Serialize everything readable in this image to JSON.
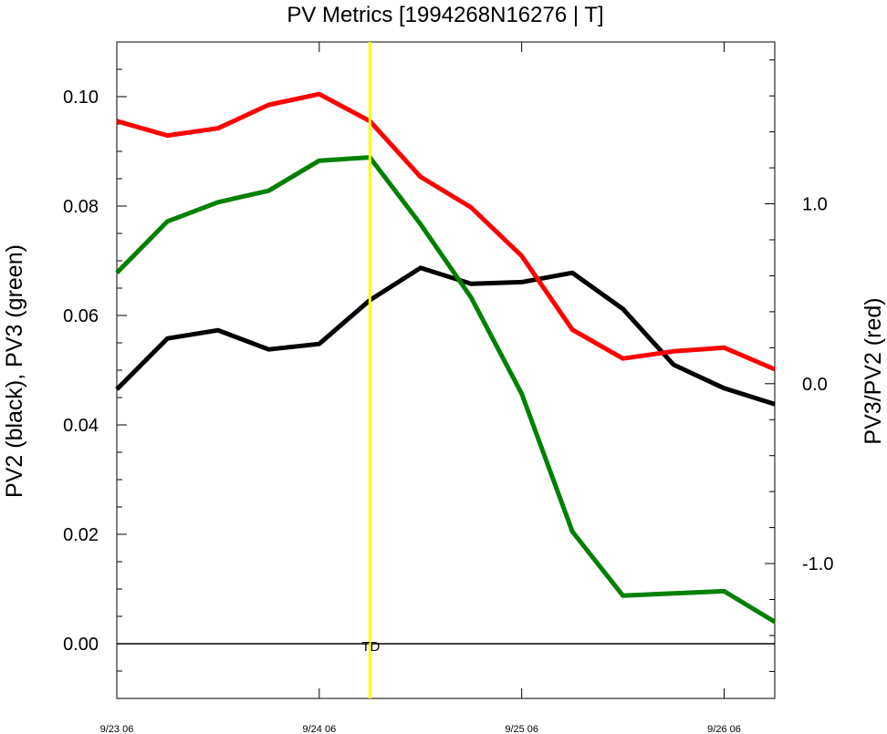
{
  "chart_data": {
    "type": "line",
    "title": "PV Metrics [1994268N16276 | T]",
    "ylabel_left": "PV2 (black), PV3 (green)",
    "ylabel_right": "PV3/PV2 (red)",
    "x_ticks": [
      {
        "x": 0,
        "label": "9/23 06"
      },
      {
        "x": 4,
        "label": "9/24 06"
      },
      {
        "x": 8,
        "label": "9/25 06"
      },
      {
        "x": 12,
        "label": "9/26 06"
      }
    ],
    "xlim": [
      0,
      13
    ],
    "ylim_left": [
      -0.01,
      0.11
    ],
    "ylim_right": [
      -1.75,
      1.9
    ],
    "left_ticks": [
      "0.00",
      "0.02",
      "0.04",
      "0.06",
      "0.08",
      "0.10"
    ],
    "left_tick_values": [
      0.0,
      0.02,
      0.04,
      0.06,
      0.08,
      0.1
    ],
    "right_ticks": [
      "-1.0",
      "0.0",
      "1.0"
    ],
    "right_tick_values": [
      -1.0,
      0.0,
      1.0
    ],
    "zero_line": 0.0,
    "marker": {
      "x": 5,
      "label": "TD",
      "color": "#ffff00"
    },
    "series": [
      {
        "axis": "left",
        "color": "#000000",
        "x": [
          0,
          1,
          2,
          3,
          4,
          5,
          6,
          7,
          8,
          9,
          10,
          11,
          12,
          13
        ],
        "values": [
          0.0465,
          0.0558,
          0.0573,
          0.0538,
          0.0548,
          0.0628,
          0.0687,
          0.0658,
          0.0661,
          0.0678,
          0.0612,
          0.051,
          0.0467,
          0.0438
        ]
      },
      {
        "axis": "left",
        "color": "#008000",
        "x": [
          0,
          1,
          2,
          3,
          4,
          5,
          6,
          7,
          8,
          9,
          10,
          11,
          12,
          13
        ],
        "values": [
          0.0678,
          0.0772,
          0.0807,
          0.0828,
          0.0883,
          0.0889,
          0.0767,
          0.0633,
          0.0457,
          0.0205,
          0.0088,
          0.0092,
          0.0096,
          0.004
        ]
      },
      {
        "axis": "right",
        "color": "#ff0000",
        "x": [
          0,
          1,
          2,
          3,
          4,
          5,
          6,
          7,
          8,
          9,
          10,
          11,
          12,
          13
        ],
        "values": [
          1.46,
          1.38,
          1.42,
          1.55,
          1.61,
          1.46,
          1.15,
          0.98,
          0.71,
          0.3,
          0.14,
          0.18,
          0.2,
          0.08
        ]
      }
    ]
  }
}
